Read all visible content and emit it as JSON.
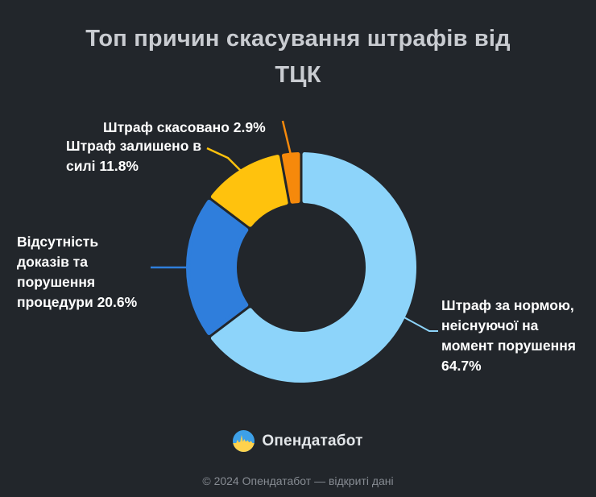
{
  "title": "Топ причин скасування штрафів від\nТЦК",
  "chart_data": {
    "type": "pie",
    "subtype": "donut",
    "title": "Топ причин скасування штрафів від ТЦК",
    "unit": "%",
    "direction": "clockwise",
    "start_angle_deg": 0,
    "inner_radius_ratio": 0.57,
    "legend_position": "callout-labels",
    "series": [
      {
        "name": "Штраф за нормою, неіснуючої на момент порушення",
        "value": 64.7,
        "color": "#8dd4fa"
      },
      {
        "name": "Відсутність доказів та порушення процедури",
        "value": 20.6,
        "color": "#2f7edc"
      },
      {
        "name": "Штраф залишено в силі",
        "value": 11.8,
        "color": "#ffc20d"
      },
      {
        "name": "Штраф скасовано",
        "value": 2.9,
        "color": "#f6890b"
      }
    ]
  },
  "labels": {
    "norm": "Штраф за нормою,\nнеіснуючої на\nмомент порушення\n64.7%",
    "evidence": "Відсутність\nдоказів та\nпорушення\nпроцедури 20.6%",
    "upheld": "Штраф залишено в\nсилі 11.8%",
    "cancelled": "Штраф скасовано 2.9%"
  },
  "footer": {
    "brand": "Опендатабот",
    "copyright": "© 2024 Опендатабот — відкриті дані"
  },
  "colors": {
    "background": "#22262b",
    "title_text": "#c9ccd1",
    "label_text": "#ffffff",
    "footer_text": "#878c93",
    "logo_blue": "#3da0e8",
    "logo_yellow": "#ffd24d"
  }
}
